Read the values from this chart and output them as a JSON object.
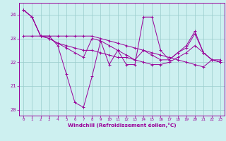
{
  "xlabel": "Windchill (Refroidissement éolien,°C)",
  "bg_color": "#cdf0f0",
  "line_color": "#990099",
  "grid_color": "#99cccc",
  "series": [
    [
      24.2,
      23.9,
      23.1,
      23.1,
      22.7,
      21.5,
      20.3,
      20.1,
      21.4,
      22.9,
      21.9,
      22.5,
      21.9,
      21.9,
      23.9,
      23.9,
      22.5,
      22.1,
      22.4,
      22.7,
      23.3,
      22.4,
      22.1,
      22.1
    ],
    [
      23.1,
      23.1,
      23.1,
      23.1,
      23.1,
      23.1,
      23.1,
      23.1,
      23.1,
      23.0,
      22.9,
      22.8,
      22.7,
      22.6,
      22.5,
      22.4,
      22.3,
      22.2,
      22.1,
      22.0,
      21.9,
      21.8,
      22.1,
      22.0
    ],
    [
      24.2,
      23.9,
      23.1,
      23.0,
      22.8,
      22.6,
      22.4,
      22.2,
      23.0,
      22.9,
      22.7,
      22.5,
      22.3,
      22.1,
      22.5,
      22.3,
      22.1,
      22.1,
      22.4,
      22.6,
      23.2,
      22.4,
      22.1,
      22.0
    ],
    [
      24.2,
      23.9,
      23.1,
      23.0,
      22.8,
      22.7,
      22.6,
      22.5,
      22.5,
      22.4,
      22.3,
      22.2,
      22.2,
      22.1,
      22.0,
      21.9,
      21.9,
      22.0,
      22.2,
      22.4,
      22.7,
      22.4,
      22.1,
      22.0
    ]
  ],
  "xlim": [
    -0.5,
    23.5
  ],
  "ylim": [
    19.75,
    24.5
  ],
  "yticks": [
    20,
    21,
    22,
    23,
    24
  ],
  "xticks": [
    0,
    1,
    2,
    3,
    4,
    5,
    6,
    7,
    8,
    9,
    10,
    11,
    12,
    13,
    14,
    15,
    16,
    17,
    18,
    19,
    20,
    21,
    22,
    23
  ]
}
